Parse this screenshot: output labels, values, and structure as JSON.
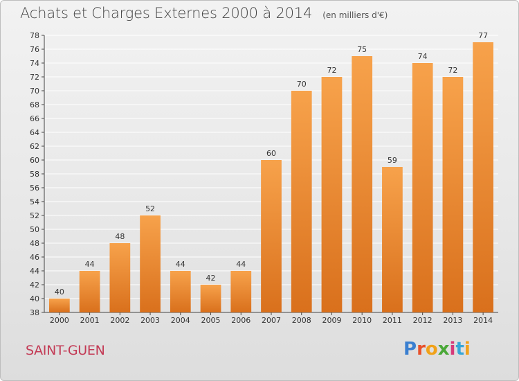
{
  "header": {
    "title": "Achats et Charges Externes 2000 à 2014",
    "unit_note": "(en milliers d'€)"
  },
  "footer": {
    "commune": "SAINT-GUEN",
    "logo_text": "Proxiti"
  },
  "chart_data": {
    "type": "bar",
    "title": "Achats et Charges Externes 2000 à 2014",
    "subtitle": "(en milliers d'€)",
    "xlabel": "",
    "ylabel": "",
    "categories": [
      "2000",
      "2001",
      "2002",
      "2003",
      "2004",
      "2005",
      "2006",
      "2007",
      "2008",
      "2009",
      "2010",
      "2011",
      "2012",
      "2013",
      "2014"
    ],
    "values": [
      40,
      44,
      48,
      52,
      44,
      42,
      44,
      60,
      70,
      72,
      75,
      59,
      74,
      72,
      77
    ],
    "ylim": [
      38,
      78
    ],
    "yticks": [
      38,
      40,
      42,
      44,
      46,
      48,
      50,
      52,
      54,
      56,
      58,
      60,
      62,
      64,
      66,
      68,
      70,
      72,
      74,
      76,
      78
    ],
    "grid": true,
    "legend": "none",
    "data_labels": true,
    "colors": {
      "bar_light": "#f7a24b",
      "bar_dark": "#d9701c",
      "grid": "#ffffff",
      "axis": "#444444"
    }
  }
}
